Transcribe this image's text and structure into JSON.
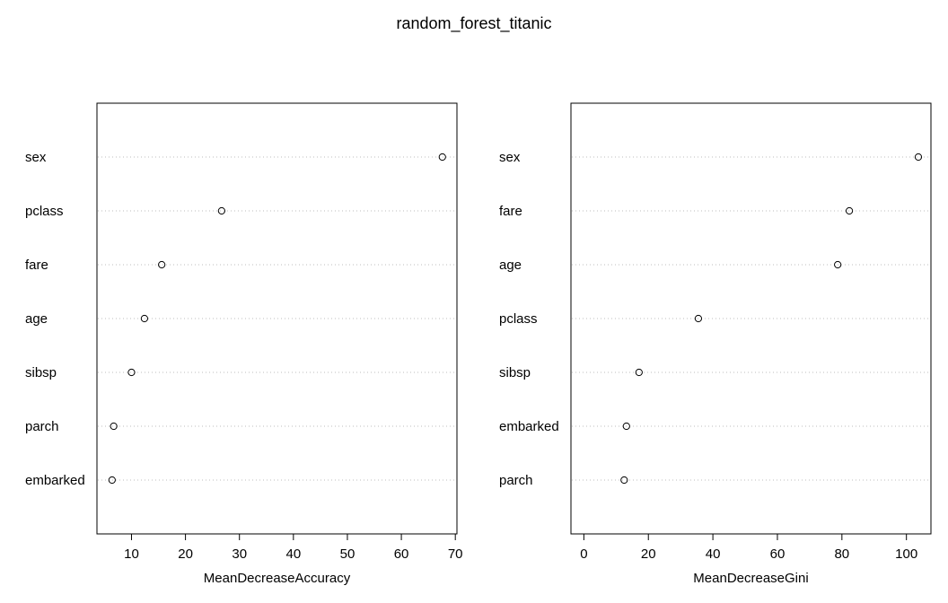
{
  "title": "random_forest_titanic",
  "chart_data": [
    {
      "type": "scatter",
      "subtype": "dotchart",
      "xlabel": "MeanDecreaseAccuracy",
      "ylabel": "",
      "xlim": [
        3.6,
        70.3
      ],
      "xticks": [
        10,
        20,
        30,
        40,
        50,
        60,
        70
      ],
      "categories": [
        "sex",
        "pclass",
        "fare",
        "age",
        "sibsp",
        "parch",
        "embarked"
      ],
      "values": [
        67.6,
        26.7,
        15.6,
        12.4,
        10.0,
        6.7,
        6.4
      ],
      "grid": "dotted horizontal guide lines"
    },
    {
      "type": "scatter",
      "subtype": "dotchart",
      "xlabel": "MeanDecreaseGini",
      "ylabel": "",
      "xlim": [
        -4.0,
        107.6
      ],
      "xticks": [
        0,
        20,
        40,
        60,
        80,
        100
      ],
      "categories": [
        "sex",
        "fare",
        "age",
        "pclass",
        "sibsp",
        "embarked",
        "parch"
      ],
      "values": [
        103.7,
        82.3,
        78.7,
        35.5,
        17.1,
        13.2,
        12.5
      ],
      "grid": "dotted horizontal guide lines"
    }
  ]
}
